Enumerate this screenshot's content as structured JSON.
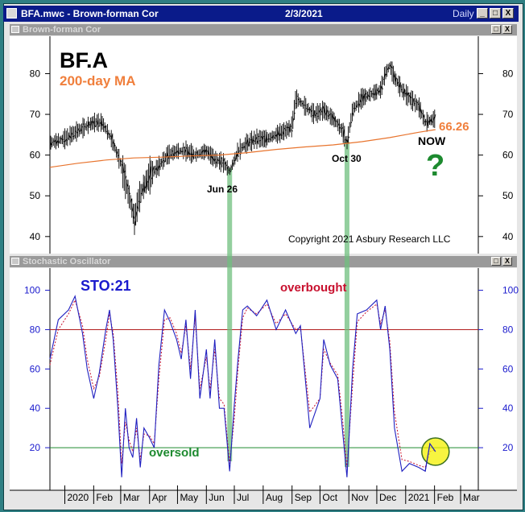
{
  "window": {
    "file_title": "BFA.mwc - Brown-forman Cor",
    "date": "2/3/2021",
    "period": "Daily",
    "min_label": "_",
    "max_label": "□",
    "close_label": "X"
  },
  "panes": {
    "price_title": "Brown-forman Cor",
    "osc_title": "Stochastic Oscillator"
  },
  "chart_data": [
    {
      "type": "line",
      "title": "BF.A",
      "subtitle": "200-day MA",
      "ylim": [
        37,
        88
      ],
      "yticks": [
        40,
        50,
        60,
        70,
        80
      ],
      "ma_last_value": "66.26",
      "annotations": {
        "now": "NOW",
        "question": "?",
        "jun": "Jun 26",
        "oct": "Oct 30",
        "copyright": "Copyright 2021 Asbury Research LLC"
      },
      "series": [
        {
          "x": [
            "2019-12-16",
            "2020-01-01",
            "2020-01-15",
            "2020-02-01",
            "2020-02-10",
            "2020-02-20",
            "2020-03-01",
            "2020-03-10",
            "2020-03-16",
            "2020-03-20",
            "2020-03-25",
            "2020-04-01",
            "2020-04-10",
            "2020-04-20",
            "2020-05-01",
            "2020-05-10",
            "2020-05-20",
            "2020-06-01",
            "2020-06-10",
            "2020-06-20",
            "2020-06-26",
            "2020-07-05",
            "2020-07-15",
            "2020-07-25",
            "2020-08-05",
            "2020-08-15",
            "2020-08-25",
            "2020-09-01",
            "2020-09-05",
            "2020-09-15",
            "2020-09-25",
            "2020-10-05",
            "2020-10-15",
            "2020-10-25",
            "2020-10-30",
            "2020-11-05",
            "2020-11-15",
            "2020-11-25",
            "2020-12-05",
            "2020-12-10",
            "2020-12-15",
            "2020-12-20",
            "2020-12-28",
            "2021-01-05",
            "2021-01-15",
            "2021-01-22",
            "2021-02-02"
          ],
          "values": [
            63,
            64,
            66,
            68,
            68,
            64,
            58,
            50,
            44,
            49,
            52,
            55,
            57,
            60,
            61,
            61,
            60,
            61,
            59,
            58,
            56,
            61,
            63,
            64,
            64,
            65,
            66,
            67,
            74,
            72,
            70,
            71,
            69,
            66,
            63,
            71,
            74,
            75,
            76,
            80,
            82,
            79,
            76,
            74,
            72,
            68,
            69
          ]
        },
        {
          "x": [
            "2019-12-16",
            "2020-01-15",
            "2020-02-15",
            "2020-03-15",
            "2020-04-15",
            "2020-05-15",
            "2020-06-15",
            "2020-07-15",
            "2020-08-15",
            "2020-09-15",
            "2020-10-15",
            "2020-11-15",
            "2020-12-15",
            "2021-01-15",
            "2021-02-02"
          ],
          "values": [
            57,
            58,
            58.8,
            59.3,
            59.5,
            59.8,
            60,
            60.6,
            61.4,
            62,
            62.5,
            63.3,
            64.3,
            65.6,
            66.26
          ]
        }
      ]
    },
    {
      "type": "line",
      "title": "STO:21",
      "ylim": [
        0,
        108
      ],
      "yticks": [
        20,
        40,
        60,
        80,
        100
      ],
      "hlines": [
        80,
        20
      ],
      "annotations": {
        "overbought": "overbought",
        "oversold": "oversold"
      },
      "x_tick_labels": [
        "2020",
        "Feb",
        "Mar",
        "Apr",
        "May",
        "Jun",
        "Jul",
        "Aug",
        "Sep",
        "Oct",
        "Nov",
        "Dec",
        "2021",
        "Feb",
        "Mar"
      ],
      "series": [
        {
          "x": [
            "2019-12-16",
            "2019-12-25",
            "2020-01-05",
            "2020-01-12",
            "2020-01-20",
            "2020-01-25",
            "2020-02-01",
            "2020-02-07",
            "2020-02-14",
            "2020-02-18",
            "2020-02-22",
            "2020-02-27",
            "2020-03-02",
            "2020-03-06",
            "2020-03-10",
            "2020-03-14",
            "2020-03-18",
            "2020-03-22",
            "2020-03-26",
            "2020-04-01",
            "2020-04-06",
            "2020-04-11",
            "2020-04-17",
            "2020-04-23",
            "2020-04-30",
            "2020-05-05",
            "2020-05-10",
            "2020-05-15",
            "2020-05-20",
            "2020-05-25",
            "2020-06-01",
            "2020-06-05",
            "2020-06-10",
            "2020-06-15",
            "2020-06-20",
            "2020-06-26",
            "2020-07-01",
            "2020-07-05",
            "2020-07-10",
            "2020-07-15",
            "2020-07-25",
            "2020-08-05",
            "2020-08-15",
            "2020-08-25",
            "2020-09-05",
            "2020-09-10",
            "2020-09-20",
            "2020-10-01",
            "2020-10-05",
            "2020-10-12",
            "2020-10-20",
            "2020-10-25",
            "2020-10-30",
            "2020-11-05",
            "2020-11-10",
            "2020-11-20",
            "2020-12-01",
            "2020-12-05",
            "2020-12-10",
            "2020-12-15",
            "2020-12-20",
            "2020-12-28",
            "2021-01-05",
            "2021-01-15",
            "2021-01-22",
            "2021-01-27",
            "2021-02-02"
          ],
          "values": [
            65,
            85,
            90,
            97,
            78,
            60,
            45,
            58,
            80,
            90,
            75,
            40,
            5,
            40,
            20,
            15,
            35,
            10,
            30,
            25,
            20,
            62,
            90,
            84,
            75,
            65,
            85,
            55,
            90,
            45,
            70,
            45,
            75,
            40,
            40,
            8,
            42,
            65,
            90,
            92,
            87,
            95,
            80,
            90,
            78,
            82,
            30,
            45,
            75,
            62,
            55,
            30,
            5,
            60,
            88,
            90,
            95,
            80,
            92,
            70,
            30,
            8,
            12,
            10,
            8,
            22,
            18
          ]
        },
        {
          "x": [
            "2019-12-16",
            "2019-12-25",
            "2020-01-05",
            "2020-01-12",
            "2020-01-20",
            "2020-01-25",
            "2020-02-01",
            "2020-02-07",
            "2020-02-14",
            "2020-02-18",
            "2020-02-22",
            "2020-02-27",
            "2020-03-02",
            "2020-03-06",
            "2020-03-10",
            "2020-03-14",
            "2020-03-18",
            "2020-03-22",
            "2020-03-26",
            "2020-04-01",
            "2020-04-06",
            "2020-04-11",
            "2020-04-17",
            "2020-04-23",
            "2020-04-30",
            "2020-05-05",
            "2020-05-10",
            "2020-05-15",
            "2020-05-20",
            "2020-05-25",
            "2020-06-01",
            "2020-06-05",
            "2020-06-10",
            "2020-06-15",
            "2020-06-20",
            "2020-06-26",
            "2020-07-01",
            "2020-07-05",
            "2020-07-10",
            "2020-07-15",
            "2020-07-25",
            "2020-08-05",
            "2020-08-15",
            "2020-08-25",
            "2020-09-05",
            "2020-09-10",
            "2020-09-20",
            "2020-10-01",
            "2020-10-05",
            "2020-10-12",
            "2020-10-20",
            "2020-10-25",
            "2020-10-30",
            "2020-11-05",
            "2020-11-10",
            "2020-11-20",
            "2020-12-01",
            "2020-12-05",
            "2020-12-10",
            "2020-12-15",
            "2020-12-20",
            "2020-12-28",
            "2021-01-05",
            "2021-01-15",
            "2021-01-22",
            "2021-01-27",
            "2021-02-02"
          ],
          "values": [
            62,
            80,
            88,
            95,
            82,
            65,
            50,
            56,
            75,
            88,
            78,
            48,
            12,
            33,
            24,
            18,
            30,
            14,
            27,
            26,
            22,
            55,
            85,
            86,
            78,
            68,
            82,
            60,
            86,
            50,
            66,
            50,
            70,
            45,
            42,
            12,
            35,
            60,
            86,
            91,
            88,
            93,
            83,
            88,
            80,
            81,
            38,
            45,
            70,
            63,
            57,
            36,
            10,
            52,
            84,
            89,
            93,
            83,
            90,
            74,
            38,
            14,
            13,
            11,
            10,
            18,
            19
          ]
        }
      ]
    }
  ]
}
